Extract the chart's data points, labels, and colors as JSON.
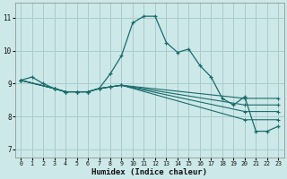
{
  "bg_color": "#cce8e8",
  "grid_color": "#aacccc",
  "line_color": "#1a6b6b",
  "xlabel": "Humidex (Indice chaleur)",
  "xlim": [
    -0.5,
    23.5
  ],
  "ylim": [
    6.75,
    11.45
  ],
  "yticks": [
    7,
    8,
    9,
    10,
    11
  ],
  "xticks": [
    0,
    1,
    2,
    3,
    4,
    5,
    6,
    7,
    8,
    9,
    10,
    11,
    12,
    13,
    14,
    15,
    16,
    17,
    18,
    19,
    20,
    21,
    22,
    23
  ],
  "lines": [
    {
      "x": [
        0,
        1,
        2,
        3,
        4,
        5,
        6,
        7,
        8,
        9,
        10,
        11,
        12,
        13,
        14,
        15,
        16,
        17,
        18,
        19,
        20,
        21,
        22,
        23
      ],
      "y": [
        9.1,
        9.2,
        9.0,
        8.85,
        8.75,
        8.75,
        8.75,
        8.85,
        9.3,
        9.85,
        10.85,
        11.05,
        11.05,
        10.25,
        9.95,
        10.05,
        9.55,
        9.2,
        8.55,
        8.35,
        8.6,
        7.55,
        7.55,
        7.7
      ]
    },
    {
      "x": [
        0,
        3,
        4,
        5,
        6,
        7,
        8,
        9,
        20,
        23
      ],
      "y": [
        9.1,
        8.85,
        8.75,
        8.75,
        8.75,
        8.85,
        8.9,
        8.95,
        8.55,
        8.55
      ]
    },
    {
      "x": [
        0,
        3,
        4,
        5,
        6,
        7,
        8,
        9,
        20,
        23
      ],
      "y": [
        9.1,
        8.85,
        8.75,
        8.75,
        8.75,
        8.85,
        8.9,
        8.95,
        8.35,
        8.35
      ]
    },
    {
      "x": [
        0,
        3,
        4,
        5,
        6,
        7,
        8,
        9,
        20,
        23
      ],
      "y": [
        9.1,
        8.85,
        8.75,
        8.75,
        8.75,
        8.85,
        8.9,
        8.95,
        8.15,
        8.15
      ]
    },
    {
      "x": [
        0,
        3,
        4,
        5,
        6,
        7,
        8,
        9,
        20,
        23
      ],
      "y": [
        9.1,
        8.85,
        8.75,
        8.75,
        8.75,
        8.85,
        8.9,
        8.95,
        7.9,
        7.9
      ]
    }
  ]
}
